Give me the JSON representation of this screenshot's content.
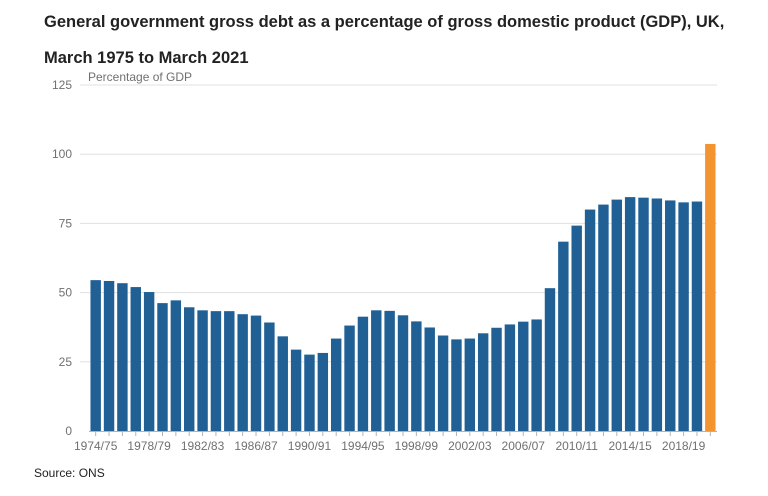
{
  "title": "General government gross debt as a percentage of gross domestic product (GDP), UK, March 1975 to March 2021",
  "source": "Source: ONS",
  "colors": {
    "bar": "#206095",
    "highlight": "#f39431",
    "grid": "#e0e0e0",
    "axis": "#b3b3b3",
    "text": "#707070"
  },
  "chart_data": {
    "type": "bar",
    "ylabel": "Percentage of GDP",
    "ylim": [
      0,
      125
    ],
    "yticks": [
      0,
      25,
      50,
      75,
      100,
      125
    ],
    "grid": true,
    "legend": "none",
    "tick_labels": [
      "1974/75",
      "1978/79",
      "1982/83",
      "1986/87",
      "1990/91",
      "1994/95",
      "1998/99",
      "2002/03",
      "2006/07",
      "2010/11",
      "2014/15",
      "2018/19"
    ],
    "categories": [
      "1974/75",
      "1975/76",
      "1976/77",
      "1977/78",
      "1978/79",
      "1979/80",
      "1980/81",
      "1981/82",
      "1982/83",
      "1983/84",
      "1984/85",
      "1985/86",
      "1986/87",
      "1987/88",
      "1988/89",
      "1989/90",
      "1990/91",
      "1991/92",
      "1992/93",
      "1993/94",
      "1994/95",
      "1995/96",
      "1996/97",
      "1997/98",
      "1998/99",
      "1999/00",
      "2000/01",
      "2001/02",
      "2002/03",
      "2003/04",
      "2004/05",
      "2005/06",
      "2006/07",
      "2007/08",
      "2008/09",
      "2009/10",
      "2010/11",
      "2011/12",
      "2012/13",
      "2013/14",
      "2014/15",
      "2015/16",
      "2016/17",
      "2017/18",
      "2018/19",
      "2019/20",
      "2020/21"
    ],
    "values": [
      54.5,
      54.2,
      53.4,
      52,
      50.2,
      46.2,
      47.2,
      44.7,
      43.6,
      43.3,
      43.3,
      42.2,
      41.7,
      39.2,
      34.2,
      29.4,
      27.6,
      28.2,
      33.4,
      38.1,
      41.3,
      43.6,
      43.4,
      41.8,
      39.6,
      37.4,
      34.5,
      33.1,
      33.4,
      35.3,
      37.3,
      38.5,
      39.5,
      40.3,
      51.6,
      68.4,
      74.2,
      80,
      81.8,
      83.6,
      84.5,
      84.3,
      84,
      83.3,
      82.6,
      82.9,
      103.7
    ],
    "highlight_category": "2020/21"
  }
}
